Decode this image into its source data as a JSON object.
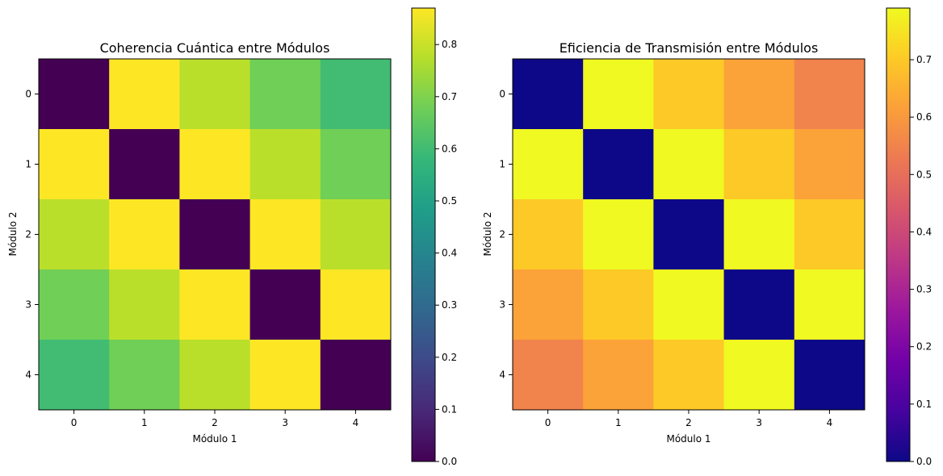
{
  "chart_data": [
    {
      "type": "heatmap",
      "title": "Coherencia Cuántica entre Módulos",
      "xlabel": "Módulo 1",
      "ylabel": "Módulo 2",
      "x_categories": [
        "0",
        "1",
        "2",
        "3",
        "4"
      ],
      "y_categories": [
        "0",
        "1",
        "2",
        "3",
        "4"
      ],
      "colormap": "viridis",
      "values": [
        [
          0.0,
          0.87,
          0.78,
          0.68,
          0.6
        ],
        [
          0.87,
          0.0,
          0.87,
          0.78,
          0.68
        ],
        [
          0.78,
          0.87,
          0.0,
          0.87,
          0.78
        ],
        [
          0.68,
          0.78,
          0.87,
          0.0,
          0.87
        ],
        [
          0.6,
          0.68,
          0.78,
          0.87,
          0.0
        ]
      ],
      "colorbar": {
        "range": [
          0.0,
          0.87
        ],
        "ticks": [
          0.0,
          0.1,
          0.2,
          0.3,
          0.4,
          0.5,
          0.6,
          0.7,
          0.8
        ],
        "tick_labels": [
          "0.0",
          "0.1",
          "0.2",
          "0.3",
          "0.4",
          "0.5",
          "0.6",
          "0.7",
          "0.8"
        ]
      }
    },
    {
      "type": "heatmap",
      "title": "Eficiencia de Transmisión entre Módulos",
      "xlabel": "Módulo 1",
      "ylabel": "Módulo 2",
      "x_categories": [
        "0",
        "1",
        "2",
        "3",
        "4"
      ],
      "y_categories": [
        "0",
        "1",
        "2",
        "3",
        "4"
      ],
      "colormap": "plasma",
      "values": [
        [
          0.0,
          0.79,
          0.7,
          0.62,
          0.55
        ],
        [
          0.79,
          0.0,
          0.79,
          0.7,
          0.62
        ],
        [
          0.7,
          0.79,
          0.0,
          0.79,
          0.7
        ],
        [
          0.62,
          0.7,
          0.79,
          0.0,
          0.79
        ],
        [
          0.55,
          0.62,
          0.7,
          0.79,
          0.0
        ]
      ],
      "colorbar": {
        "range": [
          0.0,
          0.79
        ],
        "ticks": [
          0.0,
          0.1,
          0.2,
          0.3,
          0.4,
          0.5,
          0.6,
          0.7
        ],
        "tick_labels": [
          "0.0",
          "0.1",
          "0.2",
          "0.3",
          "0.4",
          "0.5",
          "0.6",
          "0.7"
        ]
      }
    }
  ]
}
